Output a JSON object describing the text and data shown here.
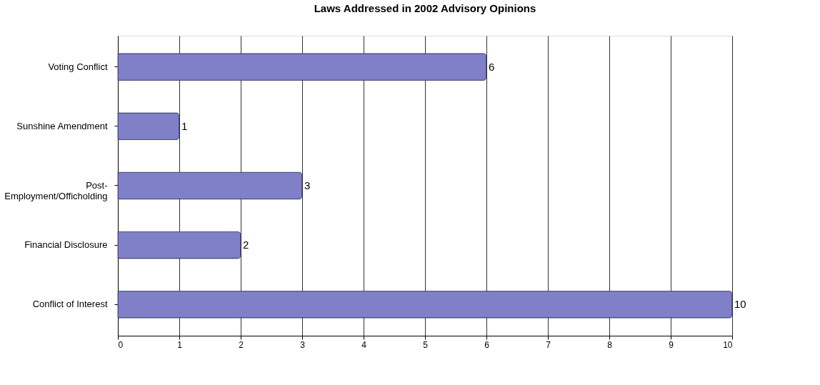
{
  "chart_data": {
    "type": "bar",
    "orientation": "horizontal",
    "title": "Laws Addressed in 2002 Advisory Opinions",
    "categories": [
      "Voting Conflict",
      "Sunshine Amendment",
      "Post-Employment/Officholding",
      "Financial Disclosure",
      "Conflict of Interest"
    ],
    "values": [
      6,
      1,
      3,
      2,
      10
    ],
    "color": "#8080c8",
    "xlim": [
      0,
      10
    ],
    "xticks": [
      0,
      1,
      2,
      3,
      4,
      5,
      6,
      7,
      8,
      9,
      10
    ],
    "grid": "x",
    "data_labels": true
  }
}
